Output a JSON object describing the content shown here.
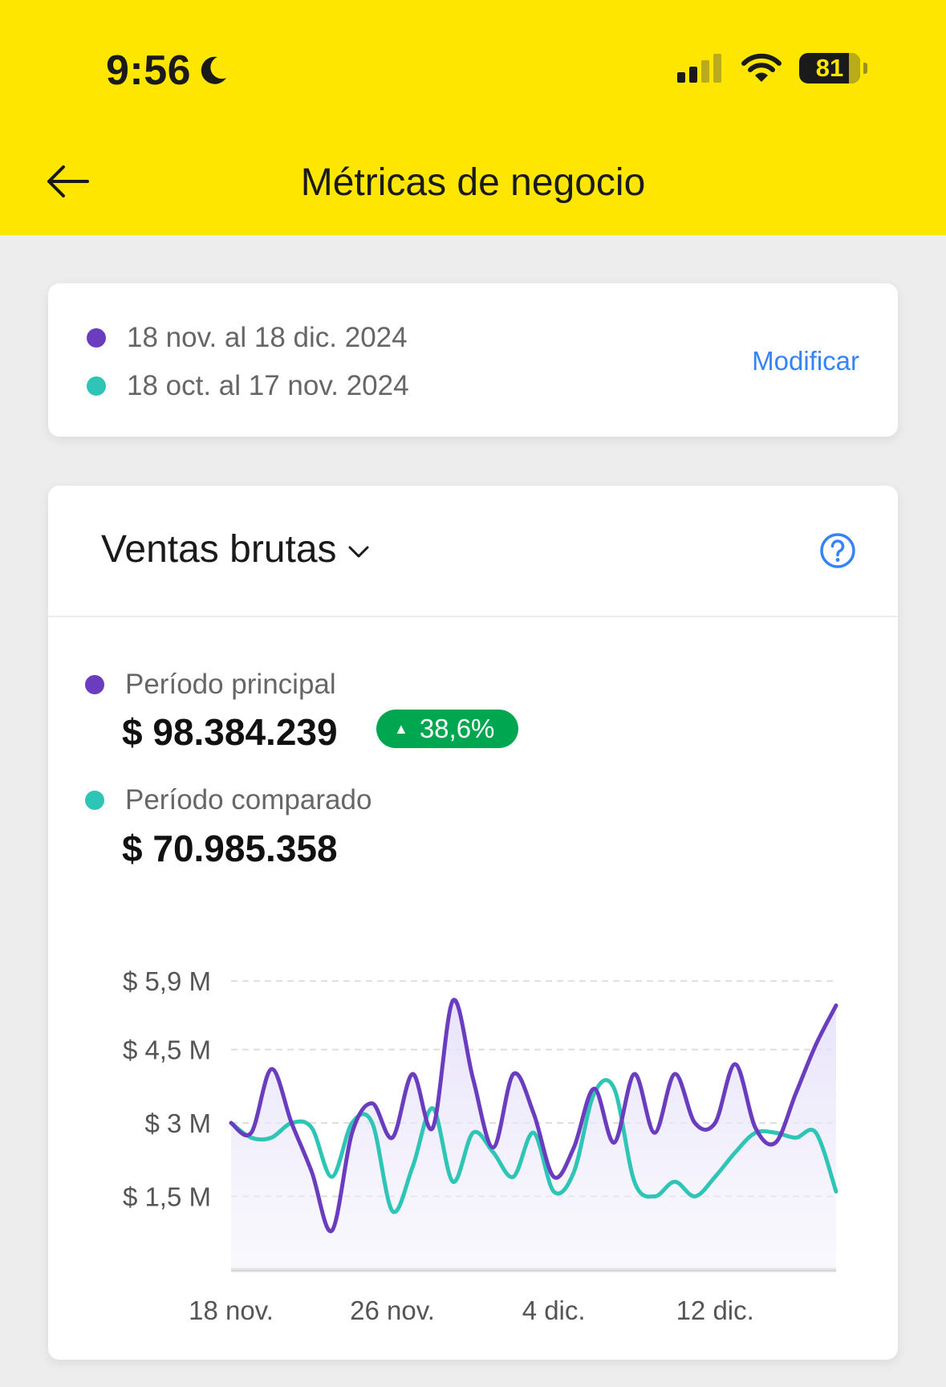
{
  "status_bar": {
    "time": "9:56",
    "battery": "81",
    "icons": [
      "moon-icon",
      "signal-icon",
      "wifi-icon",
      "battery-icon"
    ]
  },
  "header": {
    "title": "Métricas de negocio",
    "back_icon": "arrow-left-icon"
  },
  "periods": {
    "primary_range": "18 nov. al 18 dic. 2024",
    "compared_range": "18 oct. al 17 nov. 2024",
    "modify_label": "Modificar"
  },
  "sales": {
    "metric_label": "Ventas brutas",
    "primary_label": "Período principal",
    "primary_amount": "$ 98.384.239",
    "change_badge": "38,6%",
    "compared_label": "Período comparado",
    "compared_amount": "$ 70.985.358"
  },
  "colors": {
    "header_bg": "#ffe600",
    "primary_series": "#6a3dbf",
    "compared_series": "#2ec4b6",
    "link": "#3483fa",
    "badge_bg": "#00a650"
  },
  "chart_data": {
    "type": "line",
    "y_ticks": [
      "$ 5,9 M",
      "$ 4,5 M",
      "$ 3 M",
      "$ 1,5 M"
    ],
    "y_tick_values": [
      5.9,
      4.5,
      3.0,
      1.5
    ],
    "ylim": [
      0,
      6.1
    ],
    "x_ticks": [
      "18 nov.",
      "26 nov.",
      "4 dic.",
      "12 dic."
    ],
    "x_tick_index": [
      0,
      8,
      16,
      24
    ],
    "grid": true,
    "series": [
      {
        "key": "primary",
        "values": [
          3.0,
          2.8,
          4.1,
          3.0,
          2.0,
          0.8,
          2.8,
          3.4,
          2.7,
          4.0,
          2.9,
          5.5,
          3.9,
          2.5,
          4.0,
          3.2,
          1.9,
          2.5,
          3.7,
          2.6,
          4.0,
          2.8,
          4.0,
          3.0,
          3.0,
          4.2,
          2.9,
          2.6,
          3.6,
          4.6,
          5.4
        ]
      },
      {
        "key": "compared",
        "values": [
          3.0,
          2.7,
          2.7,
          3.0,
          2.9,
          1.9,
          3.0,
          3.0,
          1.2,
          2.1,
          3.3,
          1.8,
          2.8,
          2.4,
          1.9,
          2.8,
          1.6,
          2.0,
          3.6,
          3.7,
          1.8,
          1.5,
          1.8,
          1.5,
          1.9,
          2.4,
          2.8,
          2.8,
          2.7,
          2.8,
          1.6
        ]
      }
    ]
  }
}
